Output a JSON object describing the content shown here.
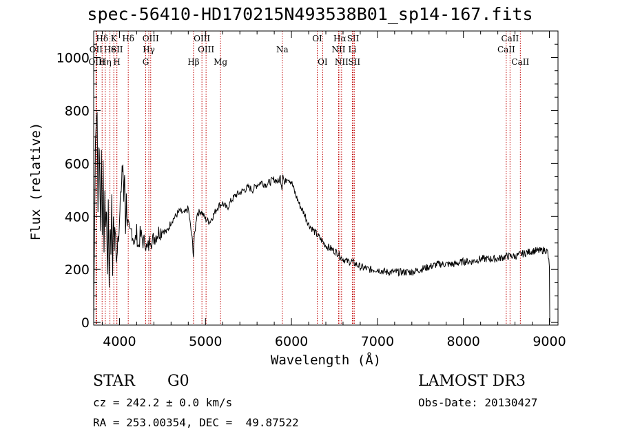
{
  "chart_data": {
    "type": "line",
    "title": "spec-56410-HD170215N493538B01_sp14-167.fits",
    "xlabel": "Wavelength (Å)",
    "ylabel": "Flux (relative)",
    "xlim": [
      3700,
      9100
    ],
    "ylim": [
      -10,
      1100
    ],
    "x_ticks": [
      4000,
      5000,
      6000,
      7000,
      8000,
      9000
    ],
    "y_ticks": [
      0,
      200,
      400,
      600,
      800,
      1000
    ],
    "series": [
      {
        "name": "spectrum",
        "color": "#000000",
        "x": [
          3700,
          3720,
          3740,
          3750,
          3760,
          3770,
          3780,
          3790,
          3800,
          3810,
          3820,
          3830,
          3840,
          3850,
          3860,
          3870,
          3880,
          3890,
          3900,
          3910,
          3920,
          3930,
          3940,
          3950,
          3960,
          3970,
          3980,
          3990,
          4000,
          4010,
          4020,
          4030,
          4040,
          4050,
          4060,
          4070,
          4080,
          4090,
          4100,
          4120,
          4140,
          4160,
          4180,
          4200,
          4220,
          4240,
          4260,
          4280,
          4300,
          4320,
          4340,
          4360,
          4380,
          4400,
          4450,
          4500,
          4550,
          4600,
          4650,
          4700,
          4750,
          4800,
          4850,
          4860,
          4870,
          4900,
          4950,
          5000,
          5050,
          5100,
          5150,
          5200,
          5250,
          5300,
          5350,
          5400,
          5450,
          5500,
          5550,
          5600,
          5650,
          5700,
          5750,
          5800,
          5850,
          5870,
          5890,
          5900,
          5920,
          5950,
          6000,
          6050,
          6100,
          6150,
          6200,
          6250,
          6300,
          6350,
          6400,
          6450,
          6500,
          6550,
          6560,
          6600,
          6650,
          6700,
          6750,
          6800,
          6900,
          7000,
          7100,
          7200,
          7300,
          7400,
          7500,
          7600,
          7700,
          7800,
          7900,
          8000,
          8100,
          8200,
          8300,
          8400,
          8500,
          8540,
          8600,
          8700,
          8800,
          8900,
          8950,
          8980,
          9000,
          9005
        ],
        "y": [
          0,
          680,
          820,
          420,
          690,
          560,
          360,
          640,
          330,
          600,
          260,
          520,
          330,
          440,
          150,
          470,
          120,
          370,
          260,
          480,
          200,
          410,
          300,
          360,
          250,
          240,
          300,
          330,
          380,
          520,
          480,
          560,
          600,
          460,
          560,
          350,
          470,
          380,
          360,
          330,
          350,
          320,
          300,
          340,
          280,
          330,
          320,
          300,
          310,
          270,
          290,
          330,
          300,
          320,
          340,
          350,
          340,
          380,
          400,
          420,
          410,
          430,
          300,
          250,
          320,
          410,
          420,
          390,
          380,
          410,
          440,
          450,
          430,
          460,
          480,
          490,
          500,
          510,
          500,
          520,
          530,
          520,
          530,
          540,
          530,
          550,
          510,
          570,
          520,
          550,
          530,
          480,
          440,
          410,
          370,
          350,
          330,
          310,
          290,
          280,
          270,
          260,
          250,
          240,
          230,
          230,
          220,
          210,
          200,
          200,
          190,
          190,
          190,
          190,
          200,
          210,
          220,
          220,
          220,
          230,
          230,
          240,
          240,
          240,
          250,
          250,
          250,
          260,
          270,
          270,
          275,
          265,
          210,
          0
        ]
      }
    ],
    "lines": [
      {
        "label": "Hδ",
        "wl": 3798,
        "row": 1
      },
      {
        "label": "OII",
        "wl": 3727,
        "row": 2
      },
      {
        "label": "OIII",
        "wl": 3736,
        "row": 3
      },
      {
        "label": "He",
        "wl": 3889,
        "row": 2
      },
      {
        "label": "Hη",
        "wl": 3835,
        "row": 3
      },
      {
        "label": "K",
        "wl": 3934,
        "row": 1
      },
      {
        "label": "SII",
        "wl": 3970,
        "row": 2
      },
      {
        "label": "H",
        "wl": 3969,
        "row": 3
      },
      {
        "label": "Hδ",
        "wl": 4102,
        "row": 1
      },
      {
        "label": "OIII",
        "wl": 4363,
        "row": 1
      },
      {
        "label": "Hγ",
        "wl": 4341,
        "row": 2
      },
      {
        "label": "G",
        "wl": 4305,
        "row": 3
      },
      {
        "label": "Hβ",
        "wl": 4861,
        "row": 3
      },
      {
        "label": "OIII",
        "wl": 4959,
        "row": 1
      },
      {
        "label": "OIII",
        "wl": 5007,
        "row": 2
      },
      {
        "label": "Mg",
        "wl": 5175,
        "row": 3
      },
      {
        "label": "Na",
        "wl": 5894,
        "row": 2
      },
      {
        "label": "OI",
        "wl": 6300,
        "row": 1
      },
      {
        "label": "OI",
        "wl": 6363,
        "row": 3
      },
      {
        "label": "Hα",
        "wl": 6563,
        "row": 1
      },
      {
        "label": "NII",
        "wl": 6548,
        "row": 2
      },
      {
        "label": "NII",
        "wl": 6583,
        "row": 3
      },
      {
        "label": "SII",
        "wl": 6717,
        "row": 1
      },
      {
        "label": "Li",
        "wl": 6708,
        "row": 2
      },
      {
        "label": "SII",
        "wl": 6731,
        "row": 3
      },
      {
        "label": "CaII",
        "wl": 8542,
        "row": 1
      },
      {
        "label": "CaII",
        "wl": 8498,
        "row": 2
      },
      {
        "label": "CaII",
        "wl": 8662,
        "row": 3
      }
    ]
  },
  "info": {
    "class_label": "STAR",
    "subclass": "G0",
    "survey": "LAMOST DR3",
    "cz": "cz = 242.2 ± 0.0 km/s",
    "obs_date": "Obs-Date: 20130427",
    "coords": "RA = 253.00354, DEC =  49.87522"
  },
  "colors": {
    "spectrum": "#000000",
    "lines": "#c00000",
    "axes": "#000000"
  }
}
